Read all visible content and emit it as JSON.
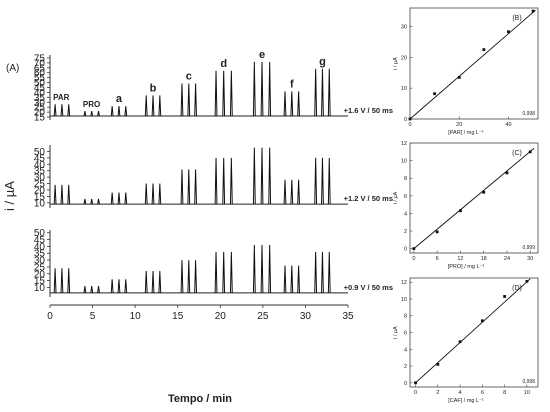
{
  "figure": {
    "panel_A_label": "(A)",
    "y_label": "i / µA",
    "x_label": "Tempo / min"
  },
  "chart_data": [
    {
      "type": "line",
      "panel": "A",
      "x_axis": {
        "label": "Tempo / min",
        "range": [
          0,
          35
        ],
        "ticks": [
          0,
          5,
          10,
          15,
          20,
          25,
          30,
          35
        ]
      },
      "y_axis_label": "i / µA",
      "peak_groups": [
        {
          "label": "PAR",
          "times": [
            0.6,
            1.4,
            2.2
          ]
        },
        {
          "label": "PRO",
          "times": [
            4.1,
            4.9,
            5.7
          ]
        },
        {
          "label": "a",
          "times": [
            7.3,
            8.1,
            8.9
          ]
        },
        {
          "label": "b",
          "times": [
            11.3,
            12.1,
            12.9
          ]
        },
        {
          "label": "c",
          "times": [
            15.5,
            16.3,
            17.1
          ]
        },
        {
          "label": "d",
          "times": [
            19.5,
            20.4,
            21.3
          ]
        },
        {
          "label": "e",
          "times": [
            24.0,
            24.9,
            25.8
          ]
        },
        {
          "label": "f",
          "times": [
            27.6,
            28.4,
            29.2
          ]
        },
        {
          "label": "g",
          "times": [
            31.2,
            32.0,
            32.8
          ]
        }
      ],
      "traces": [
        {
          "annotation": "+1.6 V / 50 ms",
          "y_range": [
            12,
            78
          ],
          "y_ticks": [
            15,
            20,
            25,
            30,
            35,
            40,
            45,
            50,
            55,
            60,
            65,
            70,
            75
          ],
          "baseline": 16,
          "group_peak_values": [
            28,
            21,
            26,
            37,
            49,
            62,
            71,
            41,
            64
          ]
        },
        {
          "annotation": "+1.2 V / 50 ms",
          "y_range": [
            6,
            55
          ],
          "y_ticks": [
            10,
            15,
            20,
            25,
            30,
            35,
            40,
            45,
            50
          ],
          "baseline": 9,
          "group_peak_values": [
            24,
            13,
            18,
            25,
            36,
            45,
            53,
            28,
            45
          ]
        },
        {
          "annotation": "+0.9 V / 50 ms",
          "y_range": [
            3,
            52
          ],
          "y_ticks": [
            10,
            15,
            20,
            25,
            30,
            35,
            40,
            45,
            50
          ],
          "baseline": 6,
          "group_peak_values": [
            24,
            11,
            16,
            22,
            30,
            36,
            41,
            26,
            36
          ]
        }
      ]
    },
    {
      "type": "scatter",
      "panel": "B",
      "panel_label": "(B)",
      "xlabel": "[PAR] / mg L⁻¹",
      "ylabel": "i / µA",
      "xlim": [
        0,
        52
      ],
      "ylim": [
        0,
        36
      ],
      "xticks": [
        0,
        20,
        40
      ],
      "yticks": [
        0,
        10,
        20,
        30
      ],
      "x": [
        0,
        10,
        20,
        30,
        40,
        50
      ],
      "y": [
        0,
        8.2,
        13.5,
        22.5,
        28.3,
        35.0
      ],
      "fit": [
        [
          0,
          0
        ],
        [
          51,
          35.3
        ]
      ],
      "r": "0,998"
    },
    {
      "type": "scatter",
      "panel": "C",
      "panel_label": "(C)",
      "xlabel": "[PRO] / mg L⁻¹",
      "ylabel": "i / µA",
      "xlim": [
        -1,
        32
      ],
      "ylim": [
        -0.5,
        12
      ],
      "xticks": [
        0,
        6,
        12,
        18,
        24,
        30
      ],
      "yticks": [
        0,
        2,
        4,
        6,
        8,
        10,
        12
      ],
      "x": [
        0,
        6,
        12,
        18,
        24,
        30
      ],
      "y": [
        0,
        1.9,
        4.3,
        6.4,
        8.6,
        11.0
      ],
      "fit": [
        [
          0,
          0
        ],
        [
          31,
          11.4
        ]
      ],
      "r": "0,999"
    },
    {
      "type": "scatter",
      "panel": "D",
      "panel_label": "(D)",
      "xlabel": "[CAF] / mg L⁻¹",
      "ylabel": "i / µA",
      "xlim": [
        -0.5,
        11
      ],
      "ylim": [
        -0.5,
        12.5
      ],
      "xticks": [
        0,
        2,
        4,
        6,
        8,
        10
      ],
      "yticks": [
        0,
        2,
        4,
        6,
        8,
        10,
        12
      ],
      "x": [
        0,
        2,
        4,
        6,
        8,
        10
      ],
      "y": [
        0,
        2.2,
        4.9,
        7.4,
        10.3,
        12.1
      ],
      "fit": [
        [
          0,
          0
        ],
        [
          10.3,
          12.4
        ]
      ],
      "r": "0,998"
    }
  ]
}
